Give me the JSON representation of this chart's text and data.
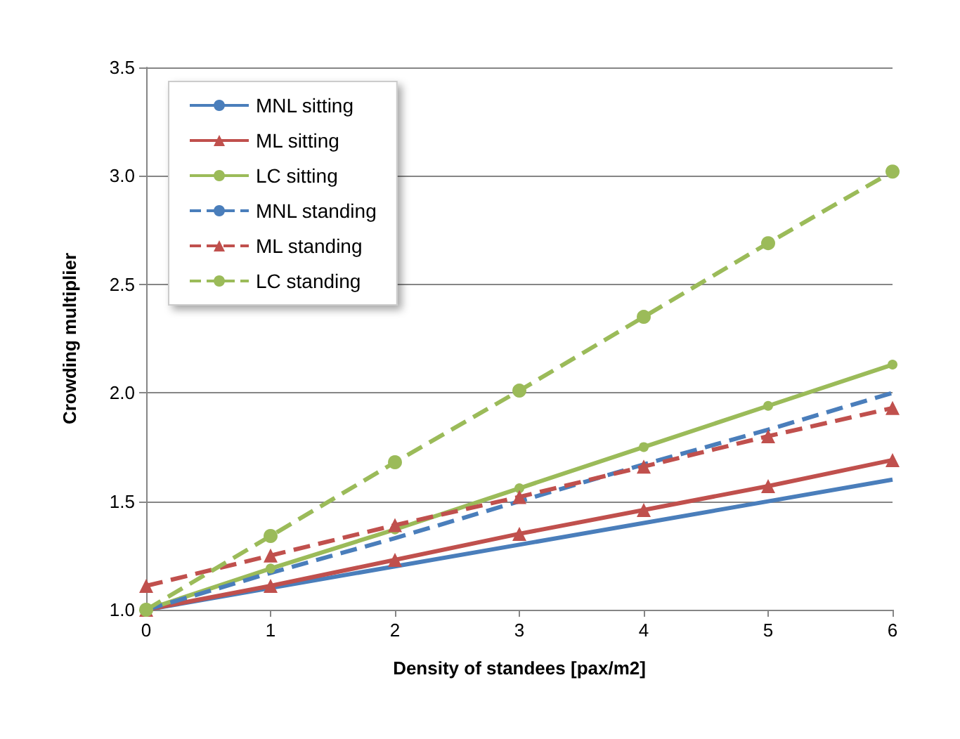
{
  "chart_data": {
    "type": "line",
    "xlabel": "Density of standees [pax/m2]",
    "ylabel": "Crowding multiplier",
    "x": [
      0,
      1,
      2,
      3,
      4,
      5,
      6
    ],
    "xlim": [
      0,
      6
    ],
    "xticks": [
      0,
      1,
      2,
      3,
      4,
      5,
      6
    ],
    "ylim": [
      1.0,
      3.5
    ],
    "yticks": [
      {
        "value": 1.0,
        "label": "1.0"
      },
      {
        "value": 1.5,
        "label": "1.5"
      },
      {
        "value": 2.0,
        "label": "2.0"
      },
      {
        "value": 2.5,
        "label": "2.5"
      },
      {
        "value": 3.0,
        "label": "3.0"
      },
      {
        "value": 3.5,
        "label": "3.5"
      }
    ],
    "grid": "y",
    "legend": "top left",
    "series": [
      {
        "name": "MNL sitting",
        "color": "#4a7ebb",
        "marker": "none",
        "line_style": "solid",
        "values": [
          1.0,
          1.1,
          1.2,
          1.3,
          1.4,
          1.5,
          1.6
        ]
      },
      {
        "name": "ML sitting",
        "color": "#c0504d",
        "marker": "triangle",
        "line_style": "solid",
        "values": [
          1.0,
          1.11,
          1.23,
          1.35,
          1.46,
          1.57,
          1.69
        ]
      },
      {
        "name": "LC sitting",
        "color": "#9bbb59",
        "marker": "circle",
        "line_style": "solid",
        "values": [
          1.0,
          1.19,
          1.37,
          1.56,
          1.75,
          1.94,
          2.13
        ]
      },
      {
        "name": "MNL standing",
        "color": "#4a7ebb",
        "marker": "none",
        "line_style": "dashed",
        "values": [
          1.0,
          1.17,
          1.33,
          1.5,
          1.67,
          1.83,
          2.0
        ]
      },
      {
        "name": "ML standing",
        "color": "#c0504d",
        "marker": "triangle",
        "line_style": "dashed",
        "values": [
          1.11,
          1.25,
          1.39,
          1.52,
          1.66,
          1.8,
          1.93
        ]
      },
      {
        "name": "LC standing",
        "color": "#9bbb59",
        "marker": "circle",
        "line_style": "dashed",
        "values": [
          1.0,
          1.34,
          1.68,
          2.01,
          2.35,
          2.69,
          3.02
        ]
      }
    ]
  }
}
